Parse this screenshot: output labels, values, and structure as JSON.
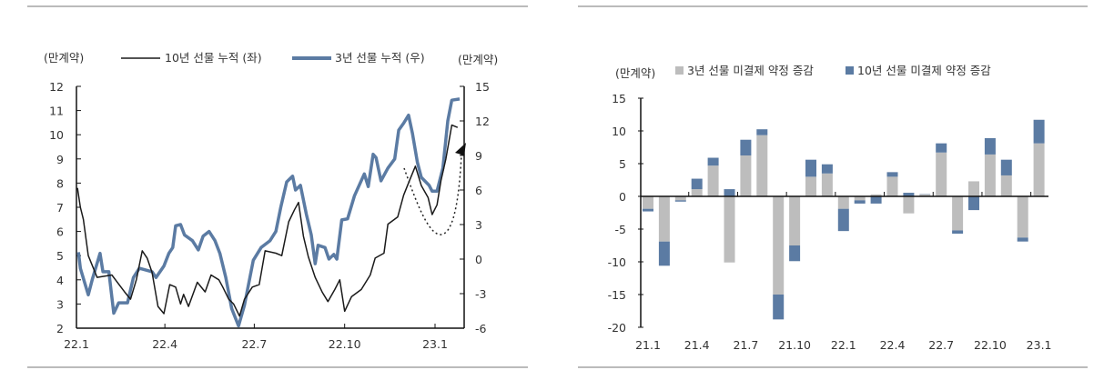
{
  "chart_data": [
    {
      "type": "line",
      "left_unit": "(만계약)",
      "right_unit": "(만계약)",
      "xticks": [
        "22.1",
        "22.4",
        "22.7",
        "22.10",
        "23.1"
      ],
      "xtick_dates": [
        "2022-01-01",
        "2022-04-01",
        "2022-07-01",
        "2022-10-01",
        "2023-01-01"
      ],
      "ylim_left": [
        2,
        12
      ],
      "yticks_left": [
        2,
        3,
        4,
        5,
        6,
        7,
        8,
        9,
        10,
        11,
        12
      ],
      "ylim_right": [
        -6,
        15
      ],
      "yticks_right": [
        -6,
        -3,
        0,
        3,
        6,
        9,
        12,
        15
      ],
      "grid": false,
      "legend_position": "top",
      "annotation": "dotted curved arrow indicating rebound",
      "series": [
        {
          "name": "10년 선물 누적 (좌)",
          "axis": "left",
          "color": "#1a1a1a",
          "points": [
            [
              "2022-01-02",
              7.8
            ],
            [
              "2022-01-05",
              7.0
            ],
            [
              "2022-01-08",
              6.5
            ],
            [
              "2022-01-13",
              5.0
            ],
            [
              "2022-01-17",
              4.6
            ],
            [
              "2022-01-22",
              4.1
            ],
            [
              "2022-02-06",
              4.2
            ],
            [
              "2022-02-19",
              3.5
            ],
            [
              "2022-02-25",
              3.2
            ],
            [
              "2022-03-03",
              4.0
            ],
            [
              "2022-03-09",
              5.2
            ],
            [
              "2022-03-14",
              4.9
            ],
            [
              "2022-03-19",
              4.3
            ],
            [
              "2022-03-25",
              2.9
            ],
            [
              "2022-03-31",
              2.6
            ],
            [
              "2022-04-06",
              3.8
            ],
            [
              "2022-04-12",
              3.7
            ],
            [
              "2022-04-17",
              3.0
            ],
            [
              "2022-04-20",
              3.4
            ],
            [
              "2022-04-25",
              2.9
            ],
            [
              "2022-05-04",
              3.9
            ],
            [
              "2022-05-12",
              3.5
            ],
            [
              "2022-05-18",
              4.2
            ],
            [
              "2022-05-26",
              4.0
            ],
            [
              "2022-05-30",
              3.7
            ],
            [
              "2022-06-05",
              3.2
            ],
            [
              "2022-06-10",
              3.0
            ],
            [
              "2022-06-16",
              2.5
            ],
            [
              "2022-06-21",
              3.2
            ],
            [
              "2022-06-29",
              3.7
            ],
            [
              "2022-07-06",
              3.8
            ],
            [
              "2022-07-12",
              5.2
            ],
            [
              "2022-07-23",
              5.1
            ],
            [
              "2022-07-29",
              5.0
            ],
            [
              "2022-08-05",
              6.4
            ],
            [
              "2022-08-11",
              6.9
            ],
            [
              "2022-08-15",
              7.2
            ],
            [
              "2022-08-20",
              5.8
            ],
            [
              "2022-08-25",
              4.95
            ],
            [
              "2022-09-01",
              4.1
            ],
            [
              "2022-09-08",
              3.5
            ],
            [
              "2022-09-14",
              3.1
            ],
            [
              "2022-09-21",
              3.6
            ],
            [
              "2022-09-26",
              4.0
            ],
            [
              "2022-10-01",
              2.7
            ],
            [
              "2022-10-08",
              3.3
            ],
            [
              "2022-10-18",
              3.6
            ],
            [
              "2022-10-27",
              4.2
            ],
            [
              "2022-11-01",
              4.9
            ],
            [
              "2022-11-10",
              5.1
            ],
            [
              "2022-11-14",
              6.3
            ],
            [
              "2022-11-24",
              6.6
            ],
            [
              "2022-11-30",
              7.5
            ],
            [
              "2022-12-06",
              8.1
            ],
            [
              "2022-12-12",
              8.7
            ],
            [
              "2022-12-18",
              7.9
            ],
            [
              "2022-12-25",
              7.4
            ],
            [
              "2022-12-29",
              6.7
            ],
            [
              "2023-01-03",
              7.1
            ],
            [
              "2023-01-07",
              8.1
            ],
            [
              "2023-01-12",
              9.0
            ],
            [
              "2023-01-18",
              10.4
            ],
            [
              "2023-01-24",
              10.3
            ]
          ]
        },
        {
          "name": "3년 선물 누적 (우)",
          "axis": "right",
          "color": "#5b7ba3",
          "points": [
            [
              "2022-01-03",
              0.6
            ],
            [
              "2022-01-05",
              -0.8
            ],
            [
              "2022-01-13",
              -3.1
            ],
            [
              "2022-01-17",
              -1.8
            ],
            [
              "2022-01-25",
              0.5
            ],
            [
              "2022-01-28",
              -1.1
            ],
            [
              "2022-02-03",
              -1.1
            ],
            [
              "2022-02-08",
              -4.7
            ],
            [
              "2022-02-13",
              -3.8
            ],
            [
              "2022-02-22",
              -3.8
            ],
            [
              "2022-02-28",
              -1.6
            ],
            [
              "2022-03-06",
              -0.8
            ],
            [
              "2022-03-19",
              -1.1
            ],
            [
              "2022-03-23",
              -1.6
            ],
            [
              "2022-03-31",
              -0.6
            ],
            [
              "2022-04-05",
              0.5
            ],
            [
              "2022-04-09",
              1.0
            ],
            [
              "2022-04-12",
              2.9
            ],
            [
              "2022-04-17",
              3.0
            ],
            [
              "2022-04-21",
              2.1
            ],
            [
              "2022-04-29",
              1.6
            ],
            [
              "2022-05-05",
              0.8
            ],
            [
              "2022-05-10",
              2.0
            ],
            [
              "2022-05-16",
              2.4
            ],
            [
              "2022-05-22",
              1.6
            ],
            [
              "2022-05-27",
              0.5
            ],
            [
              "2022-06-02",
              -1.6
            ],
            [
              "2022-06-08",
              -4.3
            ],
            [
              "2022-06-15",
              -5.8
            ],
            [
              "2022-06-21",
              -4.0
            ],
            [
              "2022-06-30",
              -0.1
            ],
            [
              "2022-07-08",
              1.0
            ],
            [
              "2022-07-17",
              1.6
            ],
            [
              "2022-07-23",
              2.4
            ],
            [
              "2022-07-28",
              4.5
            ],
            [
              "2022-08-03",
              6.7
            ],
            [
              "2022-08-09",
              7.2
            ],
            [
              "2022-08-12",
              6.0
            ],
            [
              "2022-08-17",
              6.4
            ],
            [
              "2022-08-23",
              3.9
            ],
            [
              "2022-08-28",
              2.1
            ],
            [
              "2022-09-01",
              -0.4
            ],
            [
              "2022-09-04",
              1.2
            ],
            [
              "2022-09-11",
              1.0
            ],
            [
              "2022-09-15",
              0.0
            ],
            [
              "2022-09-20",
              0.4
            ],
            [
              "2022-09-23",
              0.0
            ],
            [
              "2022-09-28",
              3.4
            ],
            [
              "2022-10-04",
              3.5
            ],
            [
              "2022-10-11",
              5.5
            ],
            [
              "2022-10-21",
              7.4
            ],
            [
              "2022-10-25",
              6.3
            ],
            [
              "2022-10-30",
              9.1
            ],
            [
              "2022-11-02",
              8.8
            ],
            [
              "2022-11-07",
              6.8
            ],
            [
              "2022-11-14",
              7.9
            ],
            [
              "2022-11-21",
              8.7
            ],
            [
              "2022-11-25",
              11.2
            ],
            [
              "2022-11-30",
              11.8
            ],
            [
              "2022-12-05",
              12.5
            ],
            [
              "2022-12-09",
              10.9
            ],
            [
              "2022-12-14",
              8.4
            ],
            [
              "2022-12-18",
              7.1
            ],
            [
              "2022-12-26",
              6.4
            ],
            [
              "2022-12-29",
              5.9
            ],
            [
              "2023-01-03",
              5.9
            ],
            [
              "2023-01-09",
              7.9
            ],
            [
              "2023-01-14",
              12.0
            ],
            [
              "2023-01-18",
              13.8
            ],
            [
              "2023-01-26",
              13.9
            ]
          ]
        }
      ]
    },
    {
      "type": "bar",
      "stacked": true,
      "unit": "(만계약)",
      "categories": [
        "21.1",
        "21.2",
        "21.3",
        "21.4",
        "21.5",
        "21.6",
        "21.7",
        "21.8",
        "21.9",
        "21.10",
        "21.11",
        "21.12",
        "22.1",
        "22.2",
        "22.3",
        "22.4",
        "22.5",
        "22.6",
        "22.7",
        "22.8",
        "22.9",
        "22.10",
        "22.11",
        "22.12",
        "23.1"
      ],
      "xticks": [
        "21.1",
        "21.4",
        "21.7",
        "21.10",
        "22.1",
        "22.4",
        "22.7",
        "22.10",
        "23.1"
      ],
      "ylim": [
        -20,
        15
      ],
      "yticks": [
        -20,
        -15,
        -10,
        -5,
        0,
        5,
        10,
        15
      ],
      "grid": false,
      "legend_position": "top",
      "series": [
        {
          "name": "3년 선물 미결제 약정 증감",
          "color": "#bdbdbd",
          "values": [
            -1.9,
            -6.9,
            -0.6,
            1.1,
            4.7,
            -10.1,
            6.25,
            9.35,
            -15.0,
            -7.5,
            3.0,
            3.5,
            -1.9,
            -0.6,
            0.3,
            3.0,
            -2.6,
            0.3,
            6.7,
            -5.2,
            2.3,
            6.4,
            3.2,
            -6.3,
            8.1
          ]
        },
        {
          "name": "10년 선물 미결제 약정 증감",
          "color": "#5b7ba3",
          "values": [
            -0.4,
            -3.7,
            -0.2,
            1.6,
            1.2,
            1.1,
            2.4,
            0.9,
            -3.8,
            -2.4,
            2.6,
            1.4,
            -3.4,
            -0.5,
            -1.1,
            0.7,
            0.55,
            0.05,
            1.4,
            -0.5,
            -2.1,
            2.5,
            2.4,
            -0.6,
            3.6
          ]
        }
      ]
    }
  ]
}
